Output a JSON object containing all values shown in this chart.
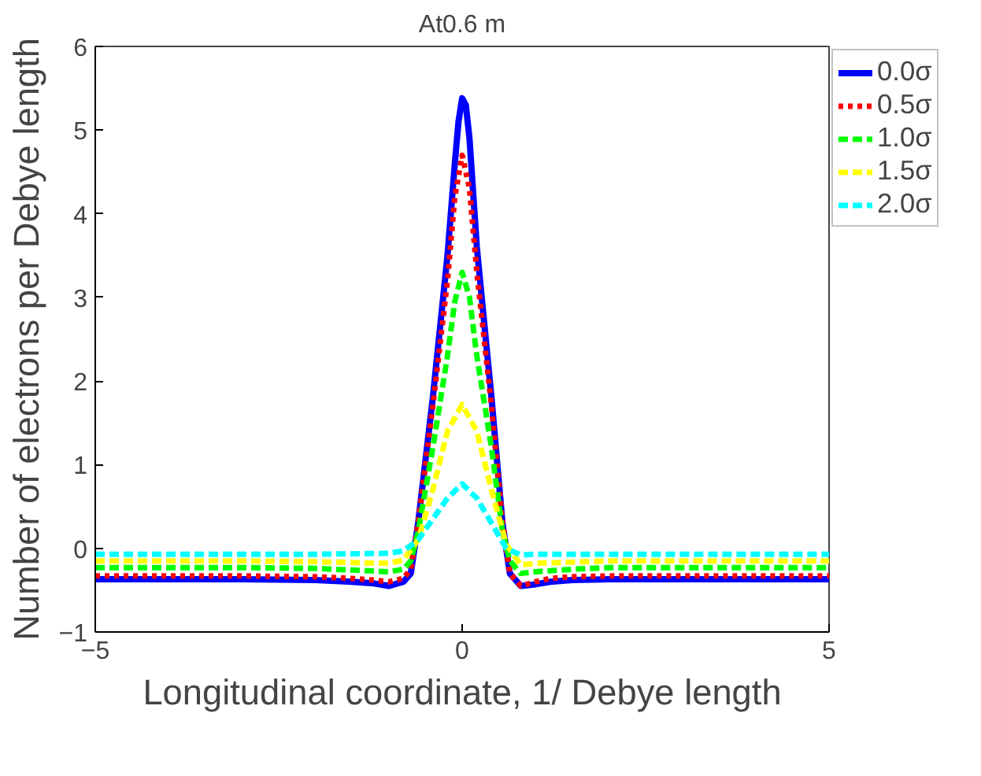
{
  "chart_data": {
    "type": "line",
    "title": "At0.6 m",
    "xlabel": "Longitudinal coordinate, 1/ Debye length",
    "ylabel": "Number of electrons per Debye length",
    "xlim": [
      -5,
      5
    ],
    "ylim": [
      -1,
      6
    ],
    "xticks": [
      -5,
      0,
      5
    ],
    "yticks": [
      -1,
      0,
      1,
      2,
      3,
      4,
      5,
      6
    ],
    "grid": false,
    "legend": "top right",
    "marker": "none",
    "series": [
      {
        "name": "0.0σ",
        "color": "#0000ff",
        "line_style": "solid",
        "x": [
          -5,
          -3,
          -2,
          -1.5,
          -1.2,
          -1.0,
          -0.8,
          -0.7,
          -0.6,
          -0.4,
          -0.2,
          -0.1,
          -0.05,
          0,
          0.05,
          0.1,
          0.2,
          0.4,
          0.55,
          0.65,
          0.8,
          1.0,
          1.2,
          1.5,
          2,
          3,
          5
        ],
        "values": [
          -0.37,
          -0.37,
          -0.38,
          -0.4,
          -0.42,
          -0.45,
          -0.4,
          -0.3,
          0.3,
          1.8,
          3.5,
          4.6,
          5.1,
          5.38,
          5.3,
          4.9,
          3.6,
          1.8,
          0.3,
          -0.3,
          -0.45,
          -0.43,
          -0.4,
          -0.38,
          -0.37,
          -0.37,
          -0.37
        ]
      },
      {
        "name": "0.5σ",
        "color": "#ff0000",
        "line_style": "dotted",
        "x": [
          -5,
          -3,
          -2,
          -1.5,
          -1.2,
          -1.0,
          -0.8,
          -0.7,
          -0.6,
          -0.4,
          -0.2,
          -0.1,
          0,
          0.1,
          0.2,
          0.4,
          0.55,
          0.65,
          0.8,
          1.0,
          1.2,
          1.5,
          2,
          3,
          5
        ],
        "values": [
          -0.33,
          -0.33,
          -0.34,
          -0.36,
          -0.38,
          -0.4,
          -0.36,
          -0.25,
          0.3,
          1.7,
          3.2,
          4.2,
          4.7,
          4.3,
          3.3,
          1.7,
          0.3,
          -0.3,
          -0.45,
          -0.4,
          -0.36,
          -0.34,
          -0.33,
          -0.33,
          -0.33
        ]
      },
      {
        "name": "1.0σ",
        "color": "#00ff00",
        "line_style": "dashed",
        "x": [
          -5,
          -3,
          -2,
          -1.5,
          -1.0,
          -0.8,
          -0.7,
          -0.6,
          -0.4,
          -0.2,
          -0.1,
          0,
          0.1,
          0.2,
          0.4,
          0.55,
          0.65,
          0.8,
          1.0,
          1.5,
          2,
          3,
          5
        ],
        "values": [
          -0.23,
          -0.23,
          -0.24,
          -0.26,
          -0.28,
          -0.25,
          -0.15,
          0.2,
          1.2,
          2.3,
          2.95,
          3.3,
          3.0,
          2.3,
          1.2,
          0.2,
          -0.15,
          -0.3,
          -0.28,
          -0.25,
          -0.23,
          -0.23,
          -0.23
        ]
      },
      {
        "name": "1.5σ",
        "color": "#ffff00",
        "line_style": "dashed",
        "x": [
          -5,
          -3,
          -2,
          -1.0,
          -0.8,
          -0.6,
          -0.4,
          -0.2,
          0,
          0.2,
          0.4,
          0.6,
          0.8,
          1.0,
          2,
          3,
          5
        ],
        "values": [
          -0.15,
          -0.15,
          -0.16,
          -0.18,
          -0.14,
          0.1,
          0.7,
          1.4,
          1.72,
          1.4,
          0.7,
          0.05,
          -0.2,
          -0.18,
          -0.15,
          -0.15,
          -0.15
        ]
      },
      {
        "name": "2.0σ",
        "color": "#00ffff",
        "line_style": "dashed",
        "x": [
          -5,
          -3,
          -2,
          -1.0,
          -0.8,
          -0.6,
          -0.4,
          -0.2,
          0,
          0.2,
          0.4,
          0.6,
          0.8,
          1.0,
          2,
          3,
          5
        ],
        "values": [
          -0.07,
          -0.07,
          -0.07,
          -0.06,
          -0.03,
          0.1,
          0.35,
          0.6,
          0.77,
          0.6,
          0.3,
          0.0,
          -0.08,
          -0.07,
          -0.07,
          -0.07,
          -0.07
        ]
      }
    ]
  }
}
